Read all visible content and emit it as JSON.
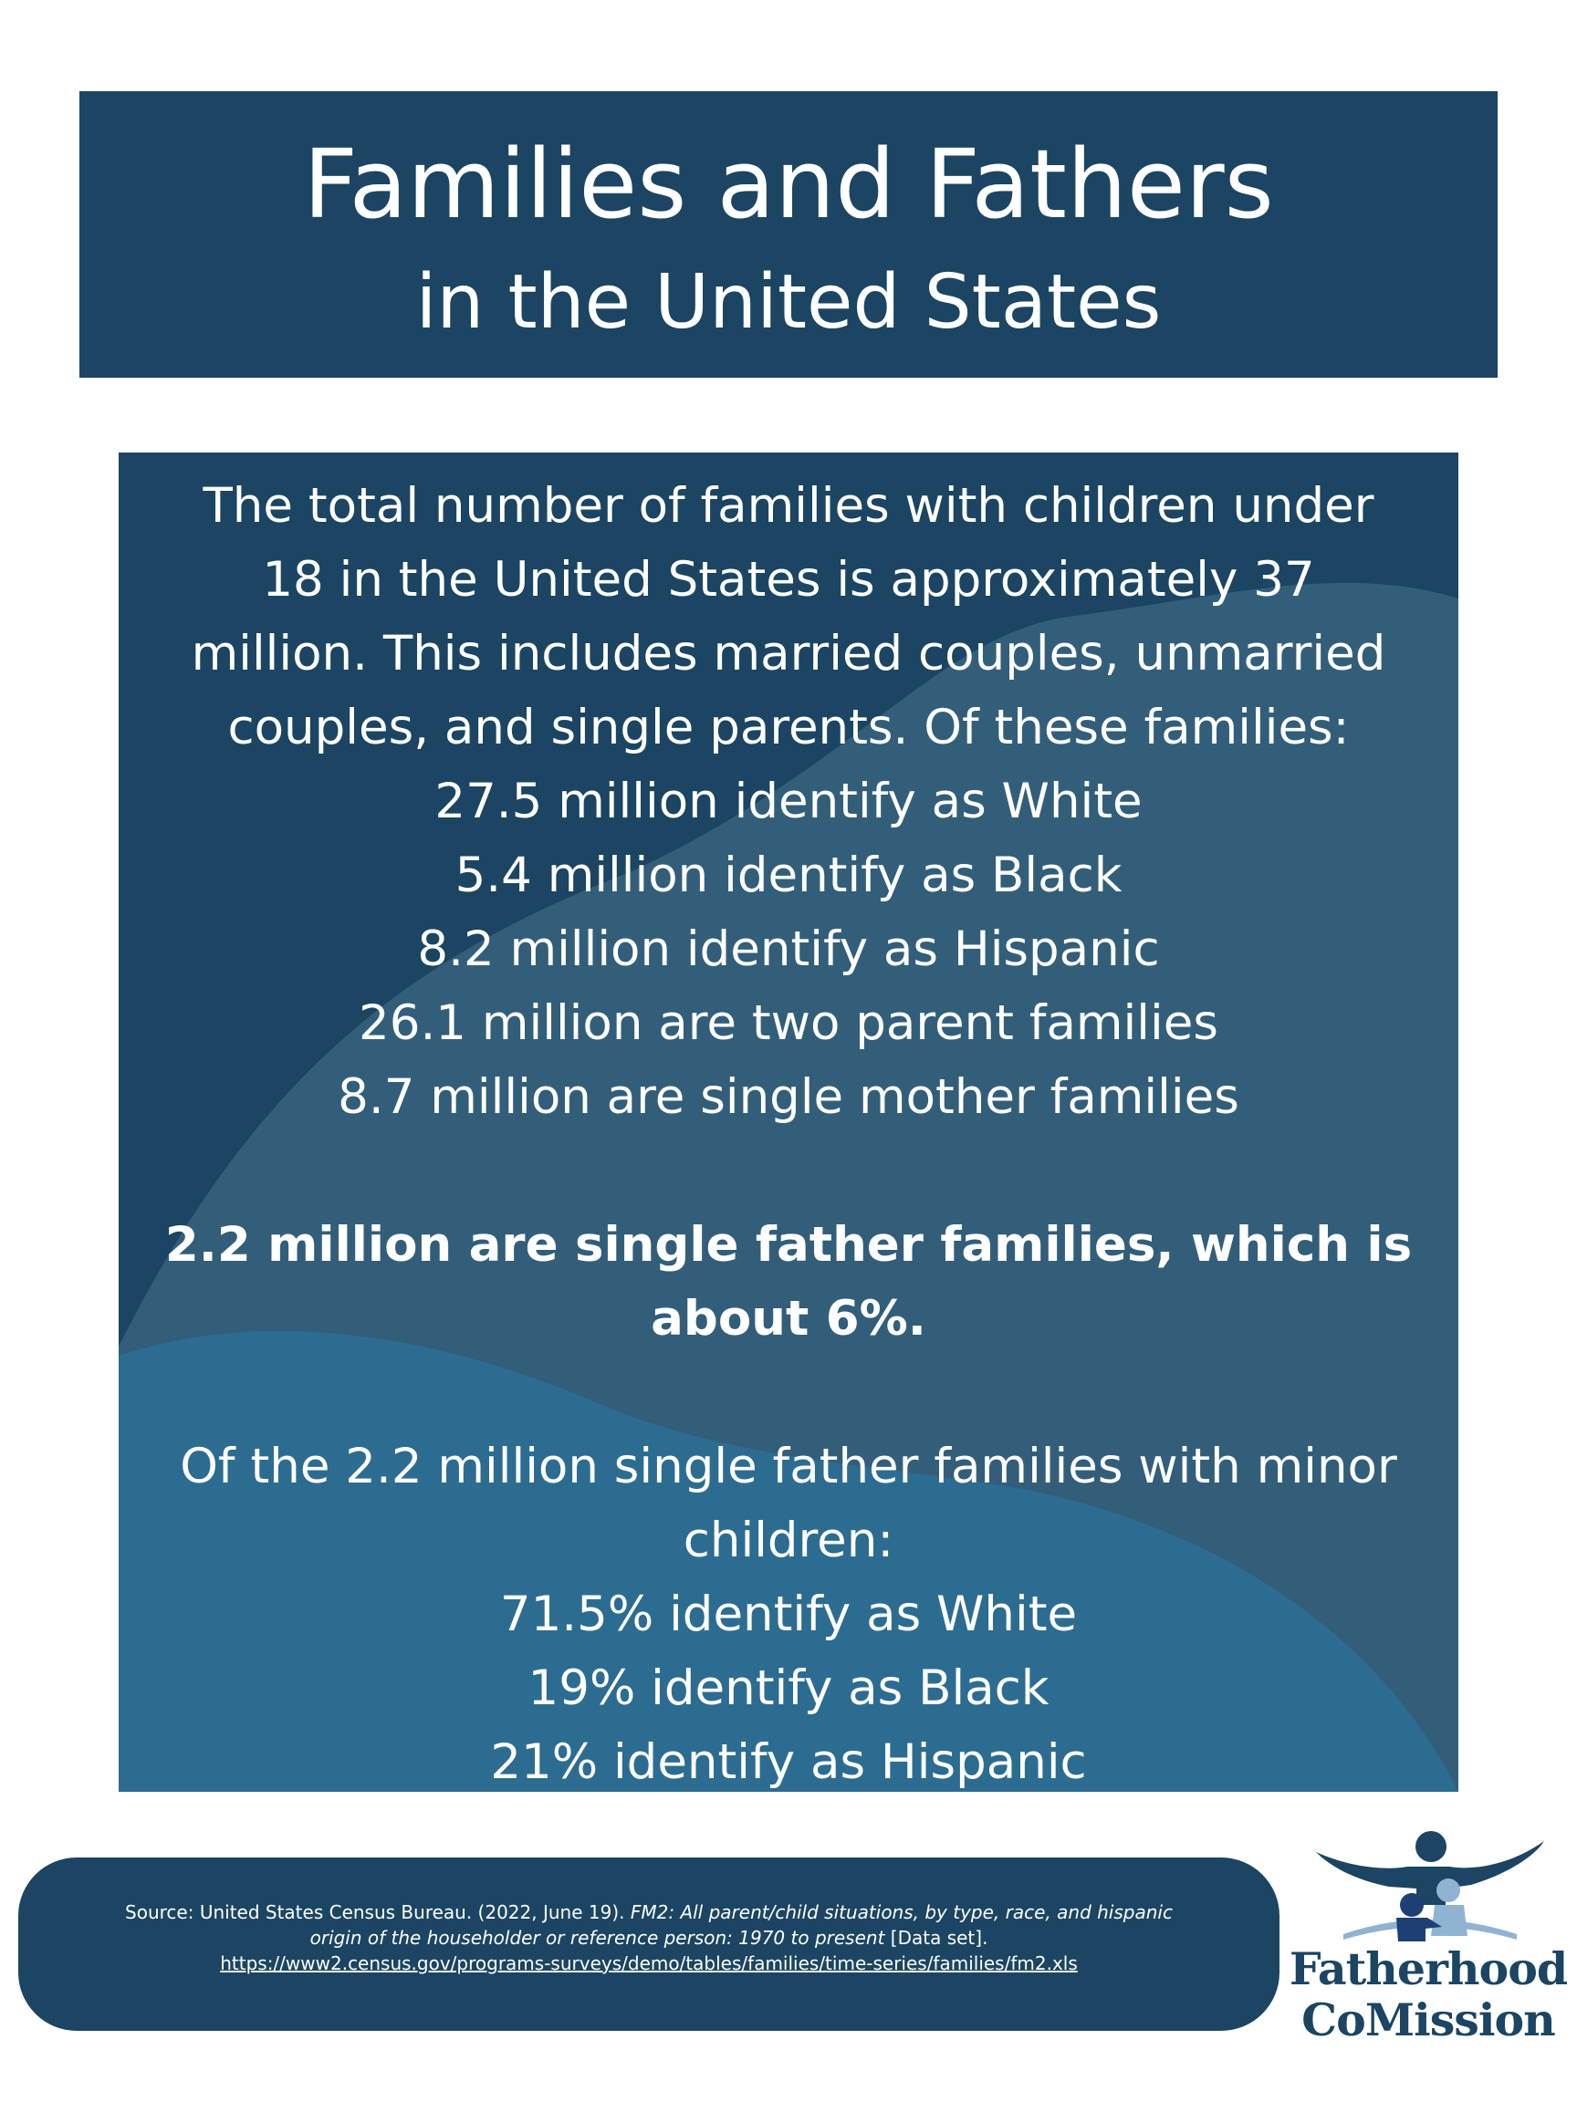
{
  "title": {
    "main": "Families and Fathers",
    "sub": "in the United States"
  },
  "intro": [
    "The total number of families with children under",
    "18 in the United States is approximately 37",
    "million. This includes married couples, unmarried",
    "couples, and single parents. Of these families:"
  ],
  "family_stats": [
    "27.5 million identify as White",
    "5.4 million identify as Black",
    "8.2 million identify as Hispanic",
    "26.1 million are two parent families",
    "8.7 million are single mother families"
  ],
  "highlight": [
    "2.2 million are single father families, which is",
    "about 6%."
  ],
  "single_father_intro": [
    "Of the 2.2 million single father families with minor",
    "children:"
  ],
  "single_father_stats": [
    "71.5% identify as White",
    "19% identify as Black",
    "21% identify as Hispanic"
  ],
  "source": {
    "prefix": "Source: United States Census Bureau. (2022, June 19). ",
    "title_part1": "FM2: All parent/child situations, by type, race, and hispanic",
    "title_part2": "origin of the householder or reference person: 1970 to present",
    "suffix": " [Data set].",
    "url": "https://www2.census.gov/programs-surveys/demo/tables/families/time-series/families/fm2.xls"
  },
  "logo": {
    "line1": "Fatherhood",
    "line2": "CoMission"
  },
  "colors": {
    "navy": "#1b4562",
    "wave_mid": "#325e7a",
    "wave_light": "#2d6c91",
    "logo_light": "#8fb3d1",
    "logo_dark": "#1d3f73"
  }
}
